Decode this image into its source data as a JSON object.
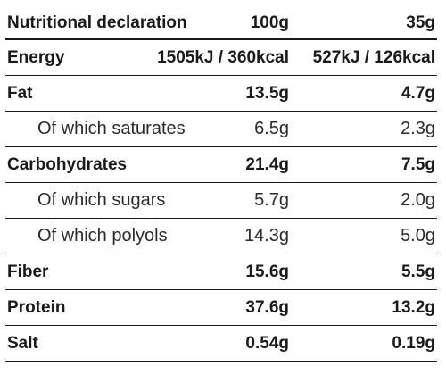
{
  "table": {
    "header": {
      "label": "Nutritional declaration",
      "col_100g": "100g",
      "col_35g": "35g"
    },
    "rows": [
      {
        "label": "Energy",
        "per_100g": "1505kJ / 360kcal",
        "per_35g": "527kJ / 126kcal"
      },
      {
        "label": "Fat",
        "per_100g": "13.5g",
        "per_35g": "4.7g"
      },
      {
        "label": "Of which saturates",
        "per_100g": "6.5g",
        "per_35g": "2.3g"
      },
      {
        "label": "Carbohydrates",
        "per_100g": "21.4g",
        "per_35g": "7.5g"
      },
      {
        "label": "Of which sugars",
        "per_100g": "5.7g",
        "per_35g": "2.0g"
      },
      {
        "label": "Of which polyols",
        "per_100g": "14.3g",
        "per_35g": "5.0g"
      },
      {
        "label": "Fiber",
        "per_100g": "15.6g",
        "per_35g": "5.5g"
      },
      {
        "label": "Protein",
        "per_100g": "37.6g",
        "per_35g": "13.2g"
      },
      {
        "label": "Salt",
        "per_100g": "0.54g",
        "per_35g": "0.19g"
      }
    ]
  }
}
